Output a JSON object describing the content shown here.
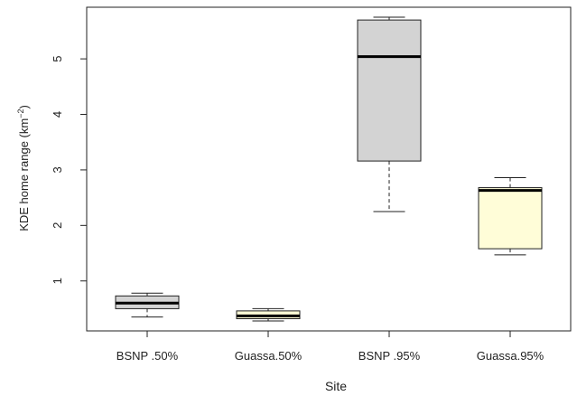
{
  "chart_data": {
    "type": "boxplot",
    "xlabel": "Site",
    "ylabel_main": "KDE home range (km",
    "ylabel_sup": "−2",
    "ylabel_close": ")",
    "ylim": [
      0.1,
      5.93
    ],
    "yticks": [
      1,
      2,
      3,
      4,
      5
    ],
    "grid": false,
    "categories": [
      "BSNP .50%",
      "Guassa.50%",
      "BSNP .95%",
      "Guassa.95%"
    ],
    "boxes": [
      {
        "label": "BSNP .50%",
        "min": 0.35,
        "q1": 0.5,
        "median": 0.6,
        "q3": 0.73,
        "max": 0.78,
        "color": "#d3d3d3"
      },
      {
        "label": "Guassa.50%",
        "min": 0.28,
        "q1": 0.32,
        "median": 0.37,
        "q3": 0.46,
        "max": 0.5,
        "color": "#fffdd8"
      },
      {
        "label": "BSNP .95%",
        "min": 2.25,
        "q1": 3.16,
        "median": 5.04,
        "q3": 5.7,
        "max": 5.75,
        "color": "#d3d3d3"
      },
      {
        "label": "Guassa.95%",
        "min": 1.47,
        "q1": 1.58,
        "median": 2.63,
        "q3": 2.68,
        "max": 2.86,
        "color": "#fffdd8"
      }
    ]
  }
}
